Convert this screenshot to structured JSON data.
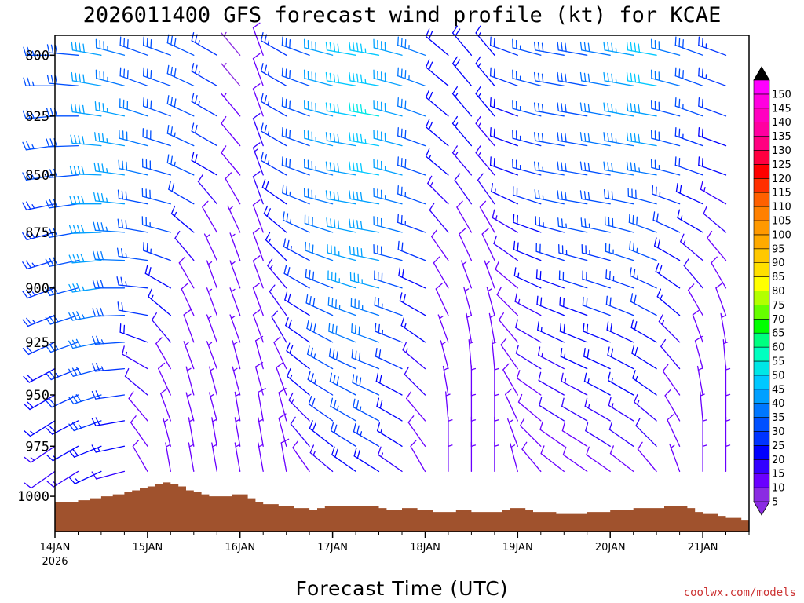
{
  "chart_data": {
    "type": "wind-barb-time-height",
    "title": "2026011400 GFS forecast wind profile (kt) for KCAE",
    "xlabel": "Forecast Time (UTC)",
    "credit": "coolwx.com/models",
    "x_start_year": "2026",
    "x_range_hours": [
      0,
      180
    ],
    "x_ticks": [
      {
        "label": "14JAN",
        "hour": 0
      },
      {
        "label": "15JAN",
        "hour": 24
      },
      {
        "label": "16JAN",
        "hour": 48
      },
      {
        "label": "17JAN",
        "hour": 72
      },
      {
        "label": "18JAN",
        "hour": 96
      },
      {
        "label": "19JAN",
        "hour": 120
      },
      {
        "label": "20JAN",
        "hour": 144
      },
      {
        "label": "21JAN",
        "hour": 168
      }
    ],
    "y_range_hpa": [
      1018,
      792
    ],
    "y_ticks": [
      {
        "label": "800",
        "value": 800
      },
      {
        "label": "825",
        "value": 825
      },
      {
        "label": "850",
        "value": 850
      },
      {
        "label": "875",
        "value": 875
      },
      {
        "label": "900",
        "value": 900
      },
      {
        "label": "925",
        "value": 925
      },
      {
        "label": "950",
        "value": 950
      },
      {
        "label": "975",
        "value": 975
      },
      {
        "label": "1000",
        "value": 1000
      }
    ],
    "pressure_levels": [
      800,
      812.5,
      825,
      837.5,
      850,
      862.5,
      875,
      887.5,
      900,
      912.5,
      925,
      937.5,
      950,
      962.5,
      975,
      987.5
    ],
    "forecast_hours": [
      0,
      6,
      12,
      18,
      24,
      30,
      36,
      42,
      48,
      54,
      60,
      66,
      72,
      78,
      84,
      90,
      96,
      102,
      108,
      114,
      120,
      126,
      132,
      138,
      144,
      150,
      156,
      162,
      168,
      174
    ],
    "wind_speed_kt": [
      [
        26,
        30,
        38,
        34,
        30,
        28,
        28,
        24,
        4,
        8,
        24,
        30,
        38,
        42,
        44,
        40,
        34,
        20,
        18,
        16,
        22,
        26,
        28,
        30,
        32,
        36,
        42,
        32,
        28,
        24
      ],
      [
        26,
        30,
        40,
        34,
        30,
        28,
        28,
        24,
        4,
        8,
        24,
        30,
        38,
        42,
        44,
        40,
        34,
        20,
        18,
        16,
        22,
        26,
        28,
        30,
        32,
        36,
        42,
        32,
        28,
        24
      ],
      [
        26,
        30,
        40,
        36,
        32,
        28,
        28,
        24,
        6,
        10,
        24,
        30,
        38,
        42,
        46,
        40,
        32,
        18,
        16,
        16,
        20,
        26,
        28,
        30,
        32,
        36,
        40,
        30,
        26,
        22
      ],
      [
        26,
        30,
        40,
        36,
        32,
        28,
        26,
        22,
        8,
        12,
        24,
        28,
        36,
        40,
        44,
        38,
        30,
        18,
        16,
        14,
        20,
        24,
        28,
        30,
        32,
        34,
        38,
        28,
        24,
        20
      ],
      [
        26,
        30,
        40,
        36,
        32,
        30,
        26,
        20,
        10,
        14,
        24,
        28,
        34,
        40,
        42,
        36,
        28,
        16,
        14,
        14,
        18,
        24,
        26,
        28,
        30,
        32,
        34,
        26,
        22,
        18
      ],
      [
        24,
        30,
        40,
        36,
        30,
        28,
        22,
        12,
        8,
        12,
        20,
        26,
        34,
        38,
        40,
        34,
        26,
        14,
        12,
        12,
        16,
        22,
        26,
        28,
        28,
        30,
        30,
        24,
        18,
        14
      ],
      [
        24,
        30,
        38,
        34,
        28,
        26,
        16,
        8,
        6,
        10,
        18,
        26,
        32,
        38,
        40,
        32,
        24,
        12,
        10,
        10,
        14,
        20,
        24,
        26,
        26,
        28,
        28,
        22,
        16,
        12
      ],
      [
        24,
        28,
        38,
        32,
        26,
        24,
        12,
        6,
        6,
        8,
        16,
        24,
        32,
        36,
        38,
        30,
        22,
        10,
        8,
        8,
        12,
        18,
        22,
        24,
        24,
        26,
        26,
        20,
        14,
        10
      ],
      [
        24,
        28,
        36,
        30,
        24,
        20,
        10,
        6,
        6,
        8,
        14,
        22,
        30,
        36,
        36,
        28,
        20,
        8,
        6,
        6,
        10,
        16,
        20,
        22,
        22,
        24,
        24,
        18,
        12,
        8
      ],
      [
        24,
        28,
        34,
        28,
        22,
        16,
        8,
        6,
        6,
        8,
        12,
        20,
        28,
        34,
        34,
        26,
        18,
        8,
        6,
        6,
        8,
        14,
        18,
        20,
        22,
        22,
        22,
        16,
        10,
        8
      ],
      [
        22,
        26,
        32,
        26,
        18,
        12,
        8,
        6,
        6,
        8,
        12,
        20,
        28,
        32,
        32,
        24,
        16,
        6,
        6,
        6,
        8,
        12,
        16,
        18,
        20,
        20,
        20,
        14,
        8,
        6
      ],
      [
        20,
        24,
        30,
        24,
        14,
        10,
        6,
        6,
        6,
        8,
        10,
        18,
        26,
        30,
        30,
        22,
        14,
        6,
        6,
        6,
        8,
        12,
        14,
        16,
        18,
        18,
        18,
        12,
        8,
        6
      ],
      [
        18,
        22,
        28,
        22,
        12,
        8,
        6,
        6,
        6,
        8,
        10,
        16,
        24,
        28,
        28,
        20,
        12,
        6,
        6,
        6,
        8,
        10,
        12,
        14,
        16,
        16,
        16,
        10,
        6,
        6
      ],
      [
        16,
        20,
        24,
        18,
        10,
        8,
        6,
        6,
        6,
        8,
        10,
        14,
        22,
        26,
        26,
        18,
        10,
        6,
        6,
        6,
        8,
        10,
        12,
        12,
        14,
        14,
        14,
        8,
        6,
        6
      ],
      [
        14,
        16,
        20,
        16,
        8,
        6,
        6,
        6,
        6,
        6,
        8,
        12,
        18,
        22,
        24,
        16,
        10,
        6,
        6,
        6,
        6,
        8,
        10,
        10,
        12,
        12,
        12,
        8,
        6,
        6
      ],
      [
        12,
        14,
        16,
        12,
        8,
        6,
        6,
        6,
        6,
        6,
        8,
        10,
        14,
        18,
        20,
        14,
        8,
        6,
        6,
        6,
        6,
        8,
        8,
        8,
        10,
        10,
        10,
        6,
        6,
        6
      ]
    ],
    "wind_dir_deg": [
      [
        270,
        275,
        280,
        285,
        290,
        290,
        295,
        300,
        320,
        340,
        300,
        290,
        285,
        280,
        280,
        285,
        290,
        310,
        320,
        320,
        290,
        285,
        280,
        280,
        280,
        280,
        280,
        285,
        290,
        290
      ],
      [
        270,
        275,
        280,
        285,
        290,
        290,
        295,
        300,
        320,
        340,
        300,
        290,
        285,
        280,
        280,
        285,
        290,
        310,
        320,
        320,
        290,
        285,
        280,
        280,
        280,
        280,
        280,
        285,
        290,
        290
      ],
      [
        265,
        270,
        278,
        282,
        288,
        290,
        295,
        300,
        320,
        340,
        300,
        290,
        285,
        280,
        280,
        285,
        290,
        310,
        320,
        320,
        290,
        285,
        280,
        280,
        280,
        280,
        280,
        285,
        290,
        290
      ],
      [
        262,
        268,
        275,
        280,
        285,
        288,
        295,
        300,
        320,
        340,
        300,
        290,
        285,
        280,
        280,
        285,
        290,
        310,
        320,
        320,
        290,
        285,
        280,
        280,
        280,
        280,
        280,
        285,
        290,
        290
      ],
      [
        260,
        265,
        272,
        278,
        283,
        286,
        295,
        300,
        320,
        340,
        300,
        290,
        285,
        280,
        280,
        285,
        290,
        310,
        320,
        320,
        290,
        285,
        280,
        280,
        280,
        280,
        280,
        285,
        290,
        290
      ],
      [
        258,
        262,
        270,
        276,
        281,
        285,
        300,
        320,
        330,
        340,
        305,
        292,
        285,
        280,
        280,
        285,
        290,
        315,
        325,
        325,
        295,
        288,
        282,
        280,
        280,
        282,
        285,
        290,
        295,
        300
      ],
      [
        255,
        260,
        268,
        274,
        280,
        285,
        310,
        330,
        335,
        340,
        310,
        295,
        288,
        282,
        280,
        285,
        290,
        320,
        330,
        330,
        300,
        290,
        285,
        282,
        282,
        285,
        290,
        295,
        300,
        310
      ],
      [
        253,
        258,
        265,
        272,
        278,
        290,
        320,
        335,
        340,
        340,
        315,
        298,
        290,
        285,
        282,
        285,
        292,
        325,
        335,
        335,
        305,
        292,
        288,
        285,
        285,
        288,
        292,
        300,
        310,
        320
      ],
      [
        250,
        255,
        262,
        270,
        276,
        300,
        330,
        340,
        340,
        340,
        320,
        300,
        292,
        288,
        285,
        288,
        295,
        330,
        340,
        340,
        310,
        295,
        290,
        288,
        288,
        290,
        295,
        305,
        320,
        330
      ],
      [
        248,
        252,
        260,
        268,
        280,
        310,
        335,
        340,
        340,
        340,
        325,
        302,
        295,
        290,
        288,
        290,
        300,
        335,
        345,
        345,
        315,
        298,
        292,
        290,
        290,
        292,
        298,
        310,
        330,
        340
      ],
      [
        245,
        250,
        258,
        266,
        290,
        320,
        340,
        340,
        340,
        340,
        330,
        305,
        298,
        292,
        290,
        292,
        305,
        340,
        350,
        350,
        320,
        300,
        295,
        292,
        292,
        295,
        300,
        315,
        340,
        350
      ],
      [
        242,
        248,
        255,
        265,
        300,
        330,
        340,
        340,
        345,
        345,
        335,
        308,
        300,
        295,
        292,
        295,
        310,
        345,
        355,
        355,
        325,
        302,
        298,
        295,
        295,
        298,
        302,
        320,
        345,
        355
      ],
      [
        240,
        245,
        252,
        262,
        310,
        335,
        345,
        345,
        345,
        345,
        340,
        310,
        302,
        298,
        295,
        298,
        315,
        350,
        360,
        360,
        330,
        305,
        300,
        298,
        298,
        300,
        305,
        325,
        350,
        360
      ],
      [
        238,
        242,
        250,
        260,
        320,
        340,
        345,
        345,
        350,
        350,
        345,
        315,
        305,
        300,
        298,
        300,
        320,
        355,
        360,
        360,
        335,
        310,
        302,
        300,
        300,
        302,
        310,
        330,
        355,
        360
      ],
      [
        236,
        240,
        248,
        258,
        325,
        345,
        350,
        350,
        350,
        350,
        345,
        320,
        308,
        302,
        300,
        302,
        325,
        360,
        360,
        360,
        340,
        315,
        305,
        302,
        302,
        305,
        315,
        335,
        360,
        360
      ],
      [
        235,
        238,
        245,
        255,
        330,
        350,
        350,
        350,
        350,
        350,
        350,
        325,
        310,
        305,
        302,
        305,
        330,
        360,
        360,
        360,
        345,
        320,
        308,
        305,
        305,
        308,
        320,
        340,
        360,
        360
      ]
    ],
    "terrain_hpa": [
      [
        0,
        1003
      ],
      [
        3,
        1003
      ],
      [
        6,
        1002
      ],
      [
        9,
        1001
      ],
      [
        12,
        1000
      ],
      [
        15,
        999
      ],
      [
        18,
        998
      ],
      [
        20,
        997
      ],
      [
        22,
        996
      ],
      [
        24,
        995
      ],
      [
        26,
        994
      ],
      [
        28,
        993
      ],
      [
        30,
        994
      ],
      [
        32,
        995
      ],
      [
        34,
        997
      ],
      [
        36,
        998
      ],
      [
        38,
        999
      ],
      [
        40,
        1000
      ],
      [
        42,
        1000
      ],
      [
        44,
        1000
      ],
      [
        46,
        999
      ],
      [
        48,
        999
      ],
      [
        50,
        1001
      ],
      [
        52,
        1003
      ],
      [
        54,
        1004
      ],
      [
        56,
        1004
      ],
      [
        58,
        1005
      ],
      [
        60,
        1005
      ],
      [
        62,
        1006
      ],
      [
        64,
        1006
      ],
      [
        66,
        1007
      ],
      [
        68,
        1006
      ],
      [
        70,
        1005
      ],
      [
        72,
        1005
      ],
      [
        74,
        1005
      ],
      [
        76,
        1005
      ],
      [
        78,
        1005
      ],
      [
        80,
        1005
      ],
      [
        82,
        1005
      ],
      [
        84,
        1006
      ],
      [
        86,
        1007
      ],
      [
        88,
        1007
      ],
      [
        90,
        1006
      ],
      [
        92,
        1006
      ],
      [
        94,
        1007
      ],
      [
        96,
        1007
      ],
      [
        98,
        1008
      ],
      [
        100,
        1008
      ],
      [
        102,
        1008
      ],
      [
        104,
        1007
      ],
      [
        106,
        1007
      ],
      [
        108,
        1008
      ],
      [
        110,
        1008
      ],
      [
        112,
        1008
      ],
      [
        114,
        1008
      ],
      [
        116,
        1007
      ],
      [
        118,
        1006
      ],
      [
        120,
        1006
      ],
      [
        122,
        1007
      ],
      [
        124,
        1008
      ],
      [
        126,
        1008
      ],
      [
        128,
        1008
      ],
      [
        130,
        1009
      ],
      [
        132,
        1009
      ],
      [
        134,
        1009
      ],
      [
        136,
        1009
      ],
      [
        138,
        1008
      ],
      [
        140,
        1008
      ],
      [
        142,
        1008
      ],
      [
        144,
        1007
      ],
      [
        146,
        1007
      ],
      [
        148,
        1007
      ],
      [
        150,
        1006
      ],
      [
        152,
        1006
      ],
      [
        154,
        1006
      ],
      [
        156,
        1006
      ],
      [
        158,
        1005
      ],
      [
        160,
        1005
      ],
      [
        162,
        1005
      ],
      [
        164,
        1006
      ],
      [
        166,
        1008
      ],
      [
        168,
        1009
      ],
      [
        170,
        1009
      ],
      [
        172,
        1010
      ],
      [
        174,
        1011
      ],
      [
        176,
        1011
      ],
      [
        178,
        1012
      ],
      [
        180,
        1012
      ]
    ],
    "terrain_color": "#a0522d",
    "colorbar": {
      "levels": [
        5,
        10,
        15,
        20,
        25,
        30,
        35,
        40,
        45,
        50,
        55,
        60,
        65,
        70,
        75,
        80,
        85,
        90,
        95,
        100,
        105,
        110,
        115,
        120,
        125,
        130,
        135,
        140,
        145,
        150
      ],
      "labels": [
        "5",
        "10",
        "15",
        "20",
        "25",
        "30",
        "35",
        "40",
        "45",
        "50",
        "55",
        "60",
        "65",
        "70",
        "75",
        "80",
        "85",
        "90",
        "95",
        "100",
        "105",
        "110",
        "115",
        "120",
        "125",
        "130",
        "135",
        "140",
        "145",
        "150"
      ],
      "colors": [
        "#8a2be2",
        "#6a00ff",
        "#3300ff",
        "#0000ff",
        "#0033ff",
        "#0050ff",
        "#0077ff",
        "#00a0ff",
        "#00c8ff",
        "#00e6e6",
        "#00ffc0",
        "#00ff80",
        "#00ff00",
        "#66ff00",
        "#b3ff00",
        "#ffff00",
        "#ffe000",
        "#ffc800",
        "#ffaa00",
        "#ff9900",
        "#ff8000",
        "#ff6000",
        "#ff3000",
        "#ff0000",
        "#ff0040",
        "#ff0080",
        "#ff00a0",
        "#ff00c0",
        "#ff00e0",
        "#ff00ff"
      ],
      "low_color": "#8a2be2",
      "high_color": "#000000"
    }
  }
}
